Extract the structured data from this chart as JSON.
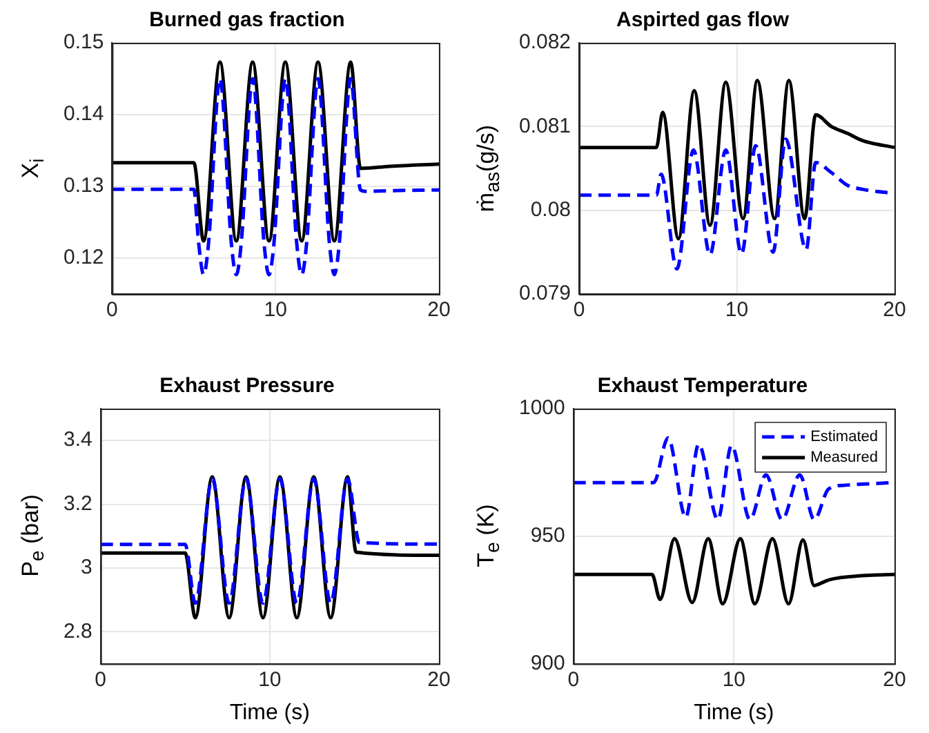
{
  "chart_data": [
    {
      "type": "line",
      "title": "Burned gas fraction",
      "ylabel": "X$_{i}$",
      "xlim": [
        0,
        20
      ],
      "xticks": [
        0,
        10,
        20
      ],
      "ylim": [
        0.115,
        0.15
      ],
      "yticks": [
        0.12,
        0.13,
        0.14,
        0.15
      ],
      "grid": true,
      "legend": false,
      "marker": "none",
      "series": [
        {
          "color": "#0000ff",
          "line_style": "dashed",
          "x": [
            0,
            5,
            5.3,
            5.6,
            5.9,
            6.6,
            7.3,
            7.6,
            7.9,
            8.6,
            9.3,
            9.6,
            9.9,
            10.6,
            11.3,
            11.6,
            11.9,
            12.6,
            13.3,
            13.6,
            13.9,
            14.6,
            15.2,
            15.5,
            17,
            20
          ],
          "values": [
            0.1296,
            0.1296,
            0.122,
            0.1177,
            0.122,
            0.145,
            0.122,
            0.1177,
            0.122,
            0.145,
            0.122,
            0.1177,
            0.122,
            0.145,
            0.122,
            0.1177,
            0.122,
            0.145,
            0.122,
            0.1177,
            0.122,
            0.145,
            0.1295,
            0.1293,
            0.1294,
            0.1295
          ]
        },
        {
          "color": "#000000",
          "line_style": "solid",
          "x": [
            0,
            5,
            5.6,
            6.6,
            7.6,
            8.6,
            9.6,
            10.6,
            11.6,
            12.6,
            13.6,
            14.6,
            15.2,
            17,
            20
          ],
          "values": [
            0.1333,
            0.1333,
            0.1224,
            0.1473,
            0.1224,
            0.1473,
            0.1224,
            0.1473,
            0.1224,
            0.1473,
            0.1224,
            0.1473,
            0.1325,
            0.1328,
            0.1331
          ]
        }
      ]
    },
    {
      "type": "line",
      "title": "Aspirted gas flow",
      "ylabel": "ṁ$_{as}$(g/s)",
      "xlim": [
        0,
        20
      ],
      "xticks": [
        0,
        10,
        20
      ],
      "ylim": [
        0.079,
        0.082
      ],
      "yticks": [
        0.079,
        0.08,
        0.081,
        0.082
      ],
      "grid": true,
      "legend": false,
      "marker": "none",
      "series": [
        {
          "color": "#0000ff",
          "line_style": "dashed",
          "x": [
            0,
            4.9,
            5.2,
            6.2,
            7.25,
            8.3,
            9.3,
            10.3,
            11.2,
            12.3,
            13.1,
            14.4,
            15,
            16,
            17,
            18,
            20
          ],
          "values": [
            0.08018,
            0.08018,
            0.08043,
            0.0793,
            0.08072,
            0.07947,
            0.08072,
            0.07948,
            0.08077,
            0.0795,
            0.08085,
            0.07953,
            0.08057,
            0.08045,
            0.0803,
            0.08025,
            0.0802
          ]
        },
        {
          "color": "#000000",
          "line_style": "solid",
          "x": [
            0,
            4.9,
            5.3,
            6.3,
            7.3,
            8.3,
            9.3,
            10.4,
            11.3,
            12.4,
            13.3,
            14.3,
            15,
            16,
            17,
            18,
            20
          ],
          "values": [
            0.08075,
            0.08075,
            0.08117,
            0.07966,
            0.08143,
            0.07982,
            0.08153,
            0.0799,
            0.08155,
            0.0799,
            0.08155,
            0.0799,
            0.08114,
            0.081,
            0.08092,
            0.08083,
            0.08075
          ]
        }
      ]
    },
    {
      "type": "line",
      "title": "Exhaust Pressure",
      "xlabel": "Time (s)",
      "ylabel": "P$_{e}$ (bar)",
      "xlim": [
        0,
        20
      ],
      "xticks": [
        0,
        10,
        20
      ],
      "ylim": [
        2.7,
        3.5
      ],
      "yticks": [
        2.8,
        3,
        3.2,
        3.4
      ],
      "grid": true,
      "legend": false,
      "marker": "none",
      "series": [
        {
          "color": "#0000ff",
          "line_style": "dashed",
          "x": [
            0,
            5,
            5.6,
            6.6,
            7.6,
            8.6,
            9.6,
            10.6,
            11.6,
            12.6,
            13.6,
            14.6,
            15.3,
            20
          ],
          "values": [
            3.074,
            3.074,
            2.89,
            3.28,
            2.89,
            3.28,
            2.89,
            3.28,
            2.89,
            3.28,
            2.89,
            3.28,
            3.08,
            3.075
          ]
        },
        {
          "color": "#000000",
          "line_style": "solid",
          "x": [
            0,
            5,
            5.6,
            6.6,
            7.6,
            8.6,
            9.6,
            10.6,
            11.6,
            12.6,
            13.6,
            14.6,
            15.1,
            20
          ],
          "values": [
            3.047,
            3.047,
            2.844,
            3.286,
            2.844,
            3.286,
            2.844,
            3.286,
            2.844,
            3.286,
            2.844,
            3.286,
            3.05,
            3.04
          ]
        }
      ]
    },
    {
      "type": "line",
      "title": "Exhaust Temperature",
      "xlabel": "Time (s)",
      "ylabel": "T$_{e}$ (K)",
      "xlim": [
        0,
        20
      ],
      "xticks": [
        0,
        10,
        20
      ],
      "ylim": [
        900,
        1000
      ],
      "yticks": [
        900,
        950,
        1000
      ],
      "grid": true,
      "legend": "top right",
      "marker": "none",
      "series": [
        {
          "name": "Estimated",
          "color": "#0000ff",
          "line_style": "dashed",
          "x": [
            0,
            5,
            5.9,
            7,
            7.8,
            9,
            9.85,
            11,
            12,
            13,
            14.1,
            15,
            15.9,
            17,
            20
          ],
          "values": [
            971,
            971,
            988.5,
            957.4,
            986,
            956.5,
            985.5,
            956.5,
            974,
            956.5,
            974,
            956.5,
            968.5,
            970,
            971
          ]
        },
        {
          "name": "Measured",
          "color": "#000000",
          "line_style": "solid",
          "x": [
            0,
            4.9,
            5.4,
            6.3,
            7.4,
            8.4,
            9.3,
            10.4,
            11.3,
            12.4,
            13.4,
            14.3,
            15,
            15.2,
            16,
            18,
            20
          ],
          "values": [
            935,
            935,
            925.2,
            949,
            924,
            949,
            923.5,
            949,
            923.5,
            949,
            923.5,
            948.5,
            930.6,
            931,
            933,
            934.5,
            935
          ]
        }
      ]
    }
  ]
}
